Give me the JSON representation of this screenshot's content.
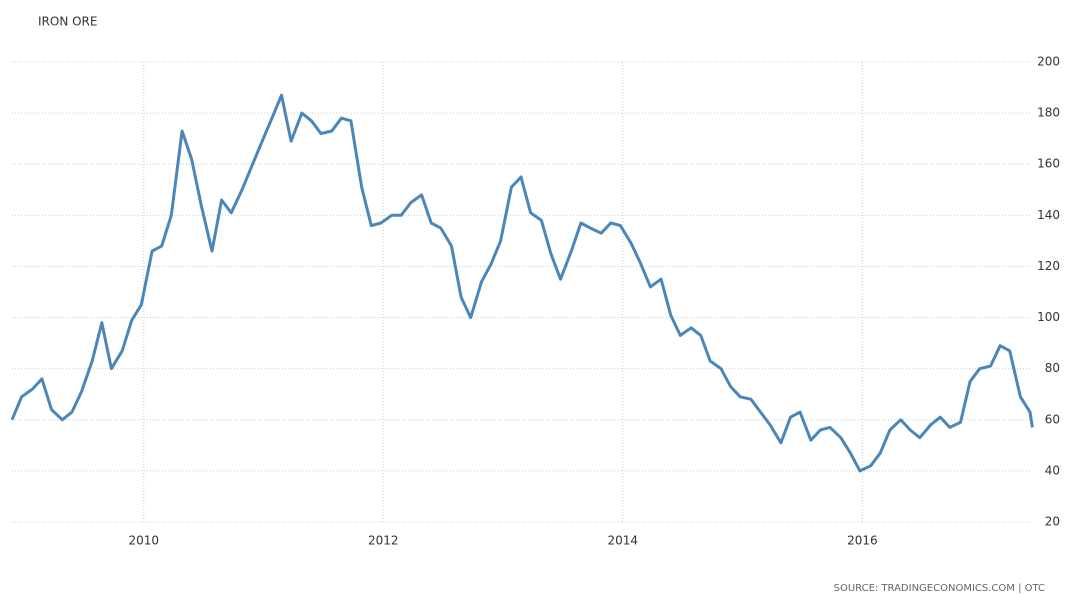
{
  "chart_data": {
    "type": "line",
    "title": "IRON ORE",
    "source": "SOURCE: TRADINGECONOMICS.COM | OTC",
    "x": [
      2008.9,
      2008.98,
      2009.07,
      2009.15,
      2009.23,
      2009.32,
      2009.4,
      2009.48,
      2009.57,
      2009.65,
      2009.73,
      2009.82,
      2009.9,
      2009.98,
      2010.07,
      2010.15,
      2010.23,
      2010.32,
      2010.4,
      2010.48,
      2010.57,
      2010.65,
      2010.73,
      2010.82,
      2010.9,
      2010.98,
      2011.07,
      2011.15,
      2011.23,
      2011.32,
      2011.4,
      2011.48,
      2011.57,
      2011.65,
      2011.73,
      2011.82,
      2011.9,
      2011.98,
      2012.07,
      2012.15,
      2012.23,
      2012.32,
      2012.4,
      2012.48,
      2012.57,
      2012.65,
      2012.73,
      2012.82,
      2012.9,
      2012.98,
      2013.07,
      2013.15,
      2013.23,
      2013.32,
      2013.4,
      2013.48,
      2013.57,
      2013.65,
      2013.73,
      2013.82,
      2013.9,
      2013.98,
      2014.07,
      2014.15,
      2014.23,
      2014.32,
      2014.4,
      2014.48,
      2014.57,
      2014.65,
      2014.73,
      2014.82,
      2014.9,
      2014.98,
      2015.07,
      2015.15,
      2015.23,
      2015.32,
      2015.4,
      2015.48,
      2015.57,
      2015.65,
      2015.73,
      2015.82,
      2015.9,
      2015.98,
      2016.07,
      2016.15,
      2016.23,
      2016.32,
      2016.4,
      2016.48,
      2016.57,
      2016.65,
      2016.73,
      2016.82,
      2016.9,
      2016.98,
      2017.07,
      2017.15,
      2017.23,
      2017.32,
      2017.4,
      2017.42
    ],
    "series": [
      {
        "name": "Iron Ore",
        "color": "#4a86b8",
        "values": [
          60,
          69,
          72,
          76,
          64,
          60,
          63,
          71,
          83,
          98,
          80,
          87,
          99,
          105,
          126,
          128,
          140,
          173,
          162,
          144,
          126,
          146,
          141,
          150,
          159,
          168,
          178,
          187,
          169,
          180,
          177,
          172,
          173,
          178,
          177,
          151,
          136,
          137,
          140,
          140,
          145,
          148,
          137,
          135,
          128,
          108,
          100,
          114,
          121,
          130,
          151,
          155,
          141,
          138,
          125,
          115,
          126,
          137,
          135,
          133,
          137,
          136,
          129,
          121,
          112,
          115,
          101,
          93,
          96,
          93,
          83,
          80,
          73,
          69,
          68,
          63,
          58,
          51,
          61,
          63,
          52,
          56,
          57,
          53,
          47,
          40,
          42,
          47,
          56,
          60,
          56,
          53,
          58,
          61,
          57,
          59,
          75,
          80,
          81,
          89,
          87,
          69,
          63,
          57
        ]
      }
    ],
    "xlim": [
      2008.9,
      2017.45
    ],
    "xticks": [
      2010,
      2012,
      2014,
      2016
    ],
    "ylim": [
      20,
      200
    ],
    "yticks": [
      20,
      40,
      60,
      80,
      100,
      120,
      140,
      160,
      180,
      200
    ],
    "grid": true
  }
}
